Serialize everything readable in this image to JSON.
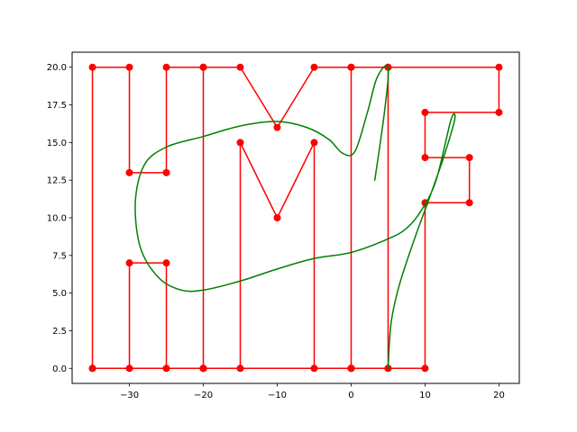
{
  "chart_data": {
    "type": "line",
    "xlim": [
      -37.75,
      22.75
    ],
    "ylim": [
      -1.0,
      21.0
    ],
    "x_ticks": [
      -30,
      -20,
      -10,
      0,
      10,
      20
    ],
    "y_ticks": [
      0.0,
      2.5,
      5.0,
      7.5,
      10.0,
      12.5,
      15.0,
      17.5,
      20.0
    ],
    "x_tick_labels": [
      "−30",
      "−20",
      "−10",
      "0",
      "10",
      "20"
    ],
    "y_tick_labels": [
      "0.0",
      "2.5",
      "5.0",
      "7.5",
      "10.0",
      "12.5",
      "15.0",
      "17.5",
      "20.0"
    ],
    "grid": false,
    "series": [
      {
        "color": "#ff0000",
        "markers": true,
        "points": [
          [
            -35,
            0
          ],
          [
            -35,
            20
          ],
          [
            -30,
            20
          ],
          [
            -30,
            13
          ],
          [
            -25,
            13
          ],
          [
            -25,
            20
          ],
          [
            -20,
            20
          ],
          [
            -20,
            0
          ],
          [
            -25,
            0
          ],
          [
            -25,
            7
          ],
          [
            -30,
            7
          ],
          [
            -30,
            0
          ],
          [
            -35,
            0
          ],
          [
            -20,
            0
          ],
          [
            -20,
            20
          ],
          [
            -15,
            20
          ],
          [
            -10,
            16
          ],
          [
            -5,
            20
          ],
          [
            0,
            20
          ],
          [
            0,
            0
          ],
          [
            -5,
            0
          ],
          [
            -5,
            15
          ],
          [
            -10,
            10
          ],
          [
            -15,
            15
          ],
          [
            -15,
            0
          ],
          [
            -20,
            0
          ],
          [
            0,
            0
          ],
          [
            0,
            20
          ],
          [
            5,
            20
          ],
          [
            5,
            0
          ],
          [
            10,
            0
          ],
          [
            10,
            11
          ],
          [
            16,
            11
          ],
          [
            16,
            14
          ],
          [
            10,
            14
          ],
          [
            10,
            17
          ],
          [
            20,
            17
          ],
          [
            20,
            20
          ],
          [
            5,
            20
          ],
          [
            5,
            0
          ],
          [
            0,
            0
          ]
        ]
      },
      {
        "color": "#008000",
        "markers": false,
        "points": [
          [
            5,
            0
          ],
          [
            5.4,
            3
          ],
          [
            6.5,
            5.5
          ],
          [
            8.5,
            8.5
          ],
          [
            10.5,
            11.2
          ],
          [
            12.5,
            14
          ],
          [
            14,
            16.5
          ],
          [
            13.5,
            16.5
          ],
          [
            11.5,
            12.5
          ],
          [
            9.5,
            10.5
          ],
          [
            7.5,
            9.3
          ],
          [
            5,
            8.6
          ],
          [
            0,
            7.7
          ],
          [
            -5,
            7.3
          ],
          [
            -10,
            6.6
          ],
          [
            -15,
            5.8
          ],
          [
            -20,
            5.2
          ],
          [
            -23,
            5.2
          ],
          [
            -26,
            6
          ],
          [
            -28.5,
            8
          ],
          [
            -29.2,
            11
          ],
          [
            -28,
            13.5
          ],
          [
            -25,
            14.7
          ],
          [
            -20,
            15.4
          ],
          [
            -15,
            16.1
          ],
          [
            -10,
            16.4
          ],
          [
            -6,
            16
          ],
          [
            -3,
            15.2
          ],
          [
            -1.2,
            14.3
          ],
          [
            0.5,
            14.4
          ],
          [
            2.2,
            17
          ],
          [
            3.5,
            19.3
          ],
          [
            5,
            20
          ],
          [
            4.5,
            17
          ],
          [
            3.2,
            12.5
          ]
        ]
      }
    ]
  }
}
